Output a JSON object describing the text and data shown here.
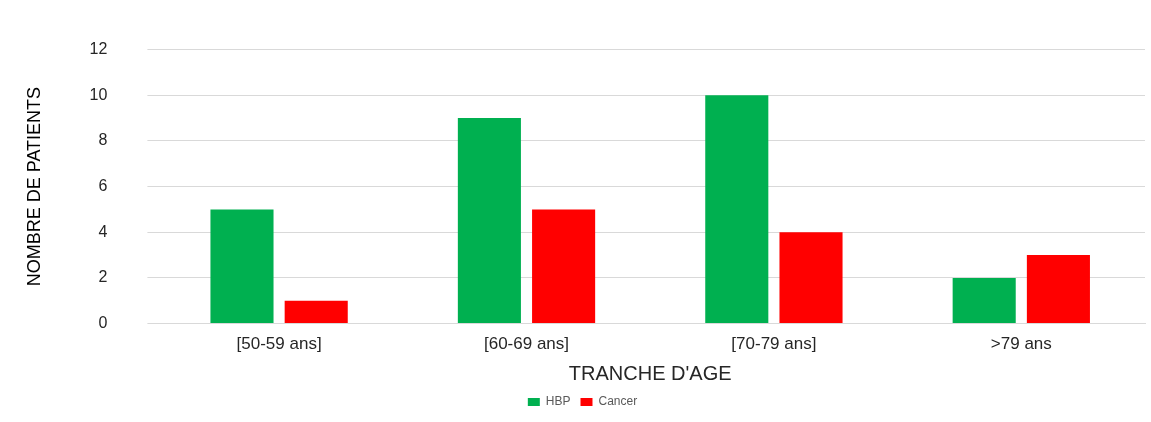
{
  "chart_data": {
    "type": "bar",
    "xlabel": "TRANCHE D'AGE",
    "ylabel": "NOMBRE DE PATIENTS",
    "categories": [
      "[50-59 ans]",
      "[60-69 ans]",
      "[70-79 ans]",
      ">79 ans"
    ],
    "series": [
      {
        "name": "HBP",
        "color": "#00b050",
        "values": [
          5,
          9,
          10,
          2
        ]
      },
      {
        "name": "Cancer",
        "color": "#ff0000",
        "values": [
          1,
          5,
          4,
          3
        ]
      }
    ],
    "ylim": [
      0,
      12
    ],
    "yticks": [
      0,
      2,
      4,
      6,
      8,
      10,
      12
    ],
    "grid": "y",
    "legend": "bottom"
  }
}
